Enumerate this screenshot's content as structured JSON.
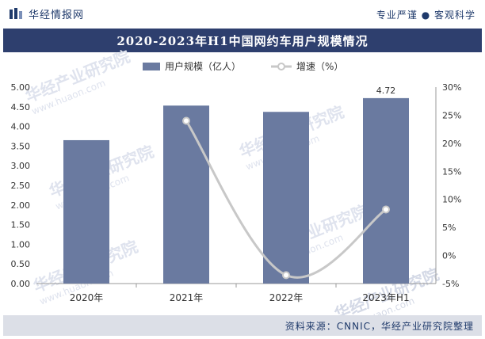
{
  "header": {
    "logo_text": "华经情报网",
    "slogan": "专业严谨 ● 客观科学"
  },
  "footer": {
    "source": "资料来源：CNNIC，华经产业研究院整理"
  },
  "watermark": {
    "text": "华经产业研究院",
    "url": "www.huaon.com"
  },
  "colors": {
    "bar": "#6a7aa0",
    "line": "#c8c8c8",
    "title_bg": "#2e3f6e",
    "footer_bg": "#dcdfe7"
  },
  "chart_data": {
    "type": "bar",
    "title": "2020-2023年H1中国网约车用户规模情况",
    "categories": [
      "2020年",
      "2021年",
      "2022年",
      "2023年H1"
    ],
    "series": [
      {
        "name": "用户规模（亿人）",
        "type": "bar",
        "axis": "left",
        "values": [
          3.65,
          4.53,
          4.37,
          4.72
        ]
      },
      {
        "name": "增速（%）",
        "type": "line",
        "axis": "right",
        "values": [
          null,
          24.0,
          -3.5,
          8.2
        ]
      }
    ],
    "data_labels": [
      null,
      null,
      null,
      "4.72"
    ],
    "ylim_left": [
      0,
      5.0
    ],
    "yticks_left": [
      "0.00",
      "0.50",
      "1.00",
      "1.50",
      "2.00",
      "2.50",
      "3.00",
      "3.50",
      "4.00",
      "4.50",
      "5.00"
    ],
    "ylim_right": [
      -5,
      30
    ],
    "yticks_right": [
      "-5%",
      "0%",
      "5%",
      "10%",
      "15%",
      "20%",
      "25%",
      "30%"
    ],
    "legend_position": "top-center",
    "grid": false
  }
}
